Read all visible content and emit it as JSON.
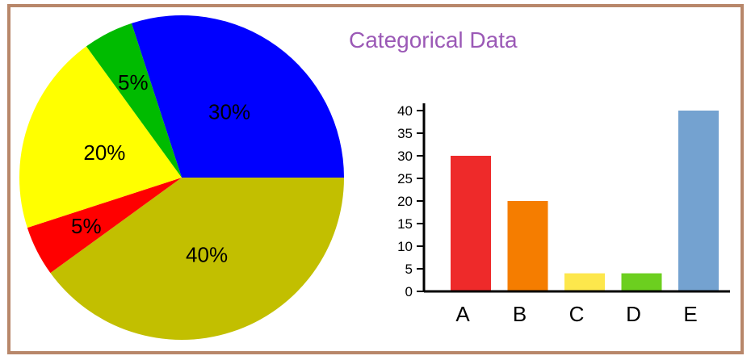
{
  "title": "Categorical Data",
  "colors": {
    "border": "#b8876a",
    "title": "#9b59b6"
  },
  "chart_data": [
    {
      "type": "pie",
      "slices": [
        {
          "label": "30%",
          "value": 30,
          "color": "#0000ff"
        },
        {
          "label": "40%",
          "value": 40,
          "color": "#c2bf00"
        },
        {
          "label": "5%",
          "value": 5,
          "color": "#ff0000"
        },
        {
          "label": "20%",
          "value": 20,
          "color": "#ffff00"
        },
        {
          "label": "5%",
          "value": 5,
          "color": "#00bb00"
        }
      ]
    },
    {
      "type": "bar",
      "categories": [
        "A",
        "B",
        "C",
        "D",
        "E"
      ],
      "values": [
        30,
        20,
        4,
        4,
        40
      ],
      "colors": [
        "#ee2a2a",
        "#f57d00",
        "#fde74c",
        "#6ccf1f",
        "#74a2d0"
      ],
      "ylim": [
        0,
        40
      ],
      "yticks": [
        "0",
        "5",
        "10",
        "15",
        "20",
        "25",
        "30",
        "35",
        "40"
      ],
      "grid": false
    }
  ]
}
